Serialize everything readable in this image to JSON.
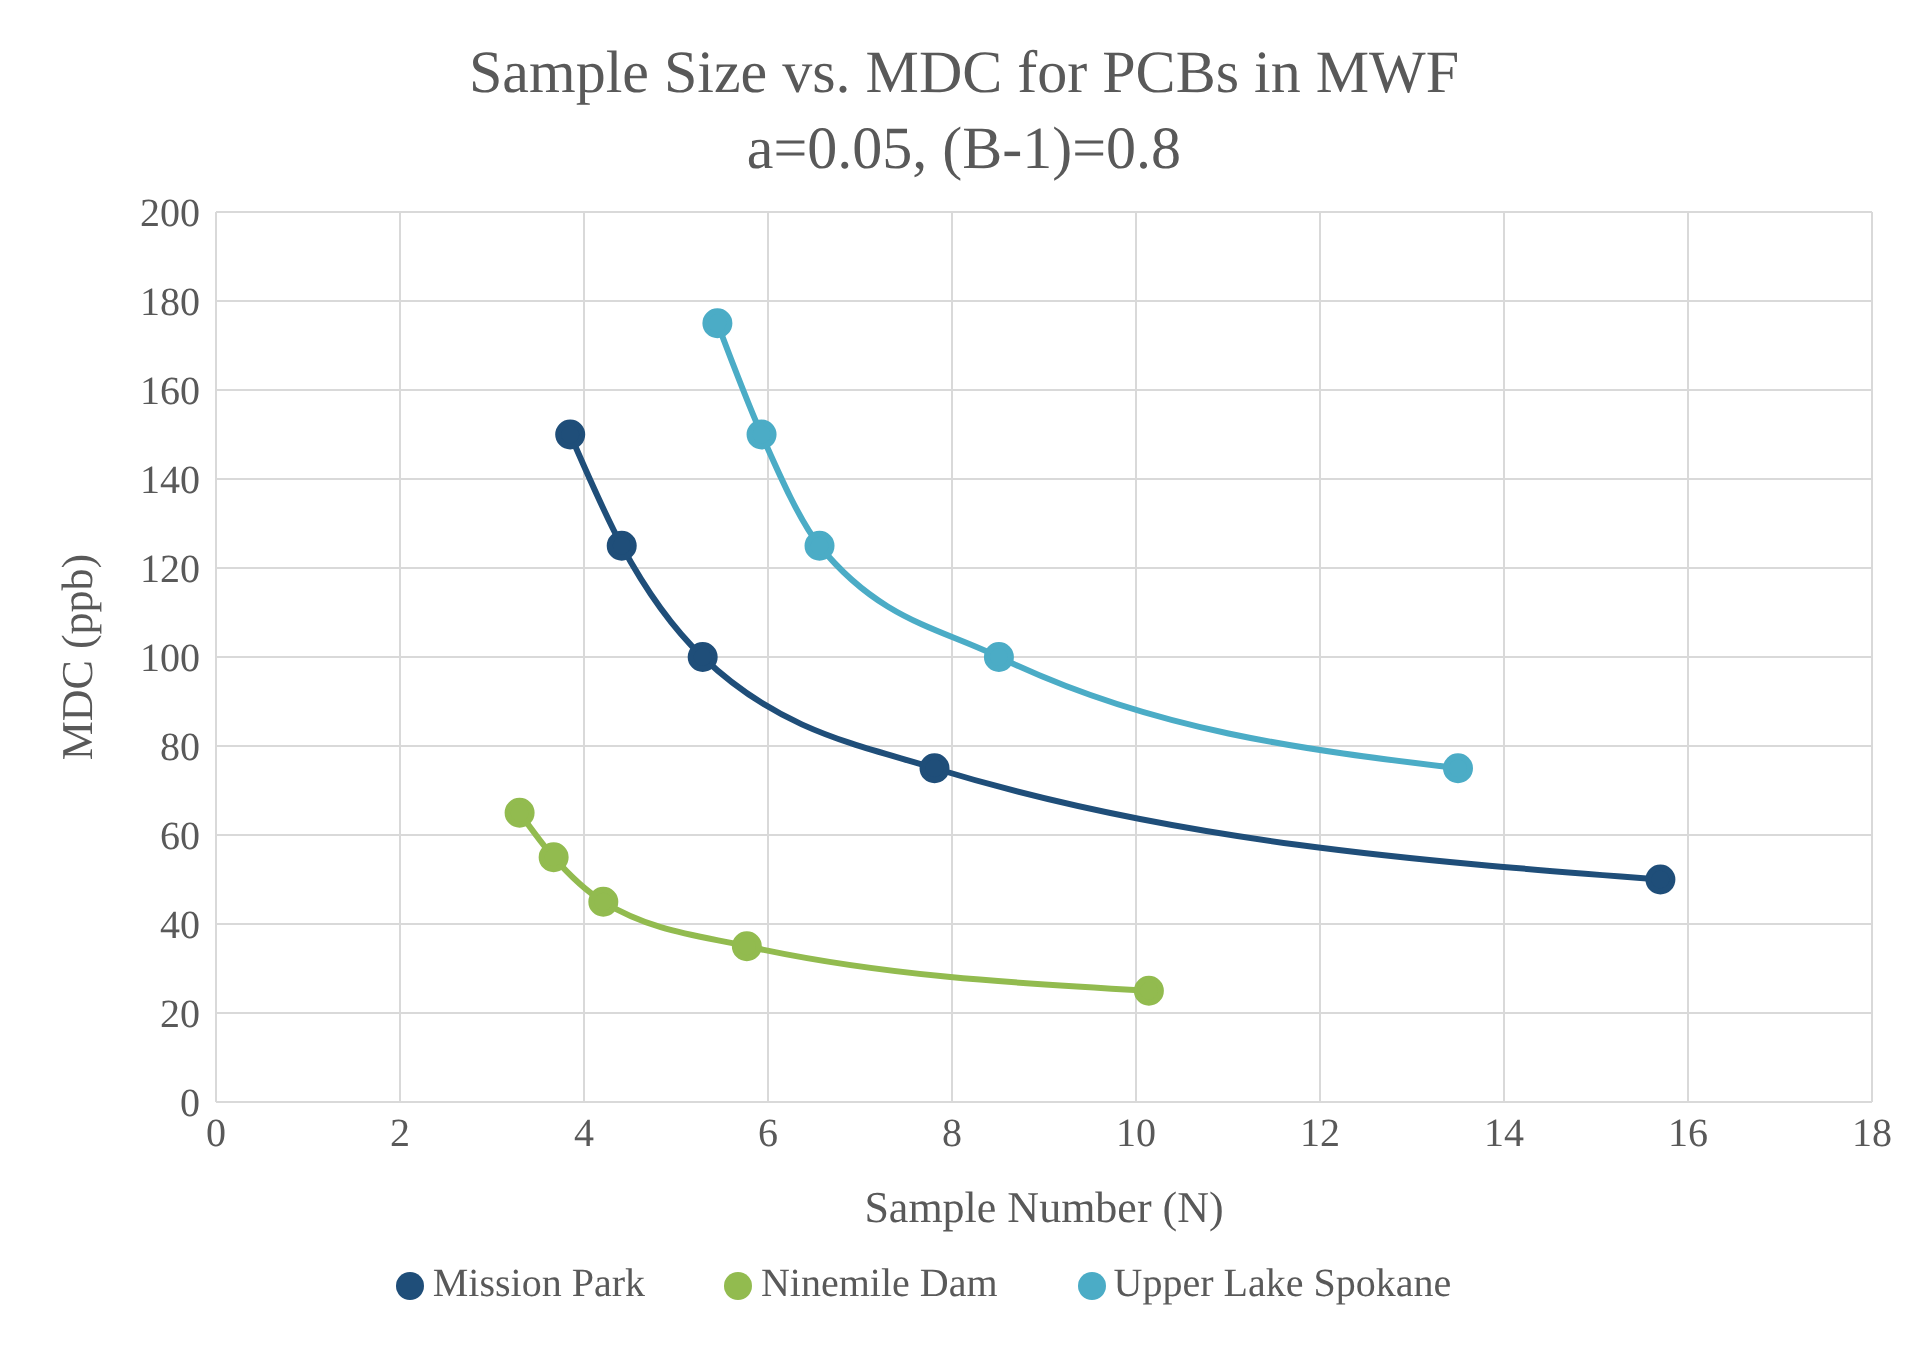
{
  "chart_data": {
    "type": "line",
    "title": "Sample Size vs. MDC for PCBs in MWF",
    "subtitle": "a=0.05, (B-1)=0.8",
    "xlabel": "Sample Number (N)",
    "ylabel": "MDC (ppb)",
    "series": [
      {
        "name": "Mission Park",
        "color": "#1f4e79",
        "x": [
          3.85,
          4.41,
          5.29,
          7.81,
          15.7
        ],
        "values": [
          150,
          125,
          100,
          75,
          50
        ]
      },
      {
        "name": "Ninemile Dam",
        "color": "#92bb4f",
        "x": [
          3.3,
          3.67,
          4.21,
          5.77,
          10.14
        ],
        "values": [
          65,
          55,
          45,
          35,
          25
        ]
      },
      {
        "name": "Upper Lake Spokane",
        "color": "#4bacc6",
        "x": [
          5.45,
          5.93,
          6.56,
          8.51,
          13.5
        ],
        "values": [
          175,
          150,
          125,
          100,
          75
        ]
      }
    ],
    "xlim": [
      0,
      18
    ],
    "xticks": [
      0,
      2,
      4,
      6,
      8,
      10,
      12,
      14,
      16,
      18
    ],
    "ylim": [
      0,
      200
    ],
    "yticks": [
      0,
      20,
      40,
      60,
      80,
      100,
      120,
      140,
      160,
      180,
      200
    ],
    "grid": true,
    "legend": "bottom",
    "marker": "circle",
    "line_style": "solid"
  }
}
